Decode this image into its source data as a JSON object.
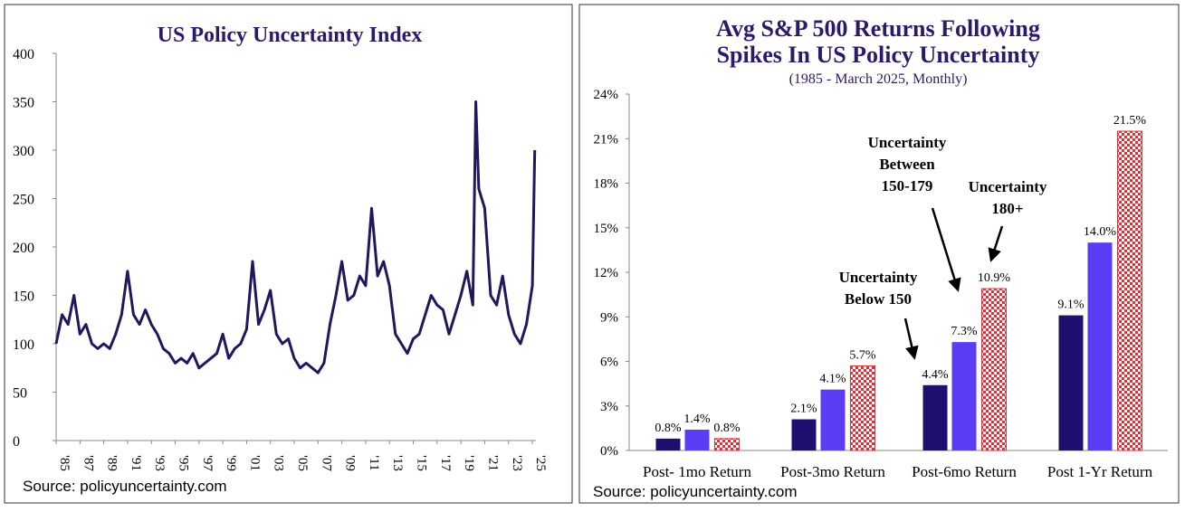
{
  "chart_data": [
    {
      "type": "line",
      "title": "US Policy Uncertainty Index",
      "source": "Source: policyuncertainty.com",
      "color": "#22165e",
      "x": [
        1985.0,
        1985.5,
        1986.0,
        1986.5,
        1987.0,
        1987.5,
        1988.0,
        1988.5,
        1989.0,
        1989.5,
        1990.0,
        1990.5,
        1991.0,
        1991.5,
        1992.0,
        1992.5,
        1993.0,
        1993.5,
        1994.0,
        1994.5,
        1995.0,
        1995.5,
        1996.0,
        1996.5,
        1997.0,
        1997.5,
        1998.0,
        1998.5,
        1999.0,
        1999.5,
        2000.0,
        2000.5,
        2001.0,
        2001.5,
        2002.0,
        2002.5,
        2003.0,
        2003.5,
        2004.0,
        2004.5,
        2005.0,
        2005.5,
        2006.0,
        2006.5,
        2007.0,
        2007.5,
        2008.0,
        2008.5,
        2009.0,
        2009.5,
        2010.0,
        2010.5,
        2011.0,
        2011.5,
        2012.0,
        2012.5,
        2013.0,
        2013.5,
        2014.0,
        2014.5,
        2015.0,
        2015.5,
        2016.0,
        2016.5,
        2017.0,
        2017.5,
        2018.0,
        2018.5,
        2019.0,
        2019.5,
        2020.0,
        2020.25,
        2020.5,
        2021.0,
        2021.5,
        2022.0,
        2022.5,
        2023.0,
        2023.5,
        2024.0,
        2024.5,
        2025.0,
        2025.2
      ],
      "values": [
        100,
        130,
        120,
        150,
        110,
        120,
        100,
        95,
        100,
        95,
        110,
        130,
        175,
        130,
        120,
        135,
        120,
        110,
        95,
        90,
        80,
        85,
        80,
        90,
        75,
        80,
        85,
        90,
        110,
        85,
        95,
        100,
        115,
        185,
        120,
        135,
        155,
        110,
        100,
        105,
        85,
        75,
        80,
        75,
        70,
        80,
        120,
        150,
        185,
        145,
        150,
        170,
        160,
        240,
        170,
        185,
        160,
        110,
        100,
        90,
        105,
        110,
        130,
        150,
        140,
        135,
        110,
        130,
        150,
        175,
        140,
        350,
        260,
        240,
        150,
        140,
        170,
        130,
        110,
        100,
        120,
        160,
        300
      ],
      "xlim": [
        1985,
        2025.3
      ],
      "xticks": [
        {
          "value": 1985,
          "label": "'85"
        },
        {
          "value": 1987,
          "label": "'87"
        },
        {
          "value": 1989,
          "label": "'89"
        },
        {
          "value": 1991,
          "label": "'91"
        },
        {
          "value": 1993,
          "label": "'93"
        },
        {
          "value": 1995,
          "label": "'95"
        },
        {
          "value": 1997,
          "label": "'97"
        },
        {
          "value": 1999,
          "label": "'99"
        },
        {
          "value": 2001,
          "label": "'01"
        },
        {
          "value": 2003,
          "label": "'03"
        },
        {
          "value": 2005,
          "label": "'05"
        },
        {
          "value": 2007,
          "label": "'07"
        },
        {
          "value": 2009,
          "label": "'09"
        },
        {
          "value": 2011,
          "label": "'11"
        },
        {
          "value": 2013,
          "label": "'13"
        },
        {
          "value": 2015,
          "label": "'15"
        },
        {
          "value": 2017,
          "label": "'17"
        },
        {
          "value": 2019,
          "label": "'19"
        },
        {
          "value": 2021,
          "label": "'21"
        },
        {
          "value": 2023,
          "label": "'23"
        },
        {
          "value": 2025,
          "label": "'25"
        }
      ],
      "ylim": [
        0,
        400
      ],
      "yticks": [
        0,
        50,
        100,
        150,
        200,
        250,
        300,
        350,
        400
      ]
    },
    {
      "type": "bar",
      "title": [
        "Avg S&P 500 Returns Following",
        "Spikes In US Policy Uncertainty"
      ],
      "subtitle": "(1985 - March 2025, Monthly)",
      "source": "Source: policyuncertainty.com",
      "categories": [
        "Post- 1mo Return",
        "Post-3mo Return",
        "Post-6mo Return",
        "Post 1-Yr Return"
      ],
      "series": [
        {
          "color": "#1f0f6e",
          "values": [
            0.8,
            2.1,
            4.4,
            9.1
          ],
          "value_labels": [
            "0.8%",
            "2.1%",
            "4.4%",
            "9.1%"
          ]
        },
        {
          "color": "#5b3cf5",
          "values": [
            1.4,
            4.1,
            7.3,
            14.0
          ],
          "value_labels": [
            "1.4%",
            "4.1%",
            "7.3%",
            "14.0%"
          ]
        },
        {
          "color": "#e0303a",
          "pattern": "checker",
          "values": [
            0.8,
            5.7,
            10.9,
            21.5
          ],
          "value_labels": [
            "0.8%",
            "5.7%",
            "10.9%",
            "21.5%"
          ]
        }
      ],
      "annotations": [
        [
          "Uncertainty",
          "Below 150"
        ],
        [
          "Uncertainty",
          "Between",
          "150-179"
        ],
        [
          "Uncertainty",
          "180+"
        ]
      ],
      "ylim": [
        0,
        24
      ],
      "yticks": [
        {
          "value": 0,
          "label": "0%"
        },
        {
          "value": 3,
          "label": "3%"
        },
        {
          "value": 6,
          "label": "6%"
        },
        {
          "value": 9,
          "label": "9%"
        },
        {
          "value": 12,
          "label": "12%"
        },
        {
          "value": 15,
          "label": "15%"
        },
        {
          "value": 18,
          "label": "18%"
        },
        {
          "value": 21,
          "label": "21%"
        },
        {
          "value": 24,
          "label": "24%"
        }
      ]
    }
  ]
}
